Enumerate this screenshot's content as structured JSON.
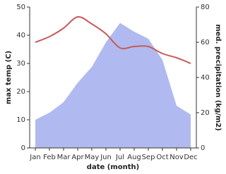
{
  "chart_data": {
    "type": "line",
    "x_label": "date (month)",
    "y_label": "max temp (C)",
    "y2_label": "med. precipitation (kg/m2)",
    "categories": [
      "Jan",
      "Feb",
      "Mar",
      "Apr",
      "May",
      "Jun",
      "Jul",
      "Aug",
      "Sep",
      "Oct",
      "Nov",
      "Dec"
    ],
    "ylim": [
      0,
      50
    ],
    "yticks": [
      0,
      10,
      20,
      30,
      40,
      50
    ],
    "y2lim": [
      0,
      80
    ],
    "y2ticks": [
      0,
      20,
      40,
      60,
      80
    ],
    "series": [
      {
        "name": "max temp",
        "type": "line",
        "color": "#c85a5a",
        "values": [
          37.5,
          39.5,
          42.5,
          46.5,
          44,
          40.5,
          35.5,
          36,
          36,
          33.5,
          32,
          30
        ]
      },
      {
        "name": "med. precipitation",
        "type": "area",
        "axis": "y2",
        "color": "#b0baf0",
        "values": [
          16,
          20,
          26,
          37,
          46,
          60,
          71,
          66,
          62,
          50,
          24,
          19
        ]
      }
    ]
  }
}
